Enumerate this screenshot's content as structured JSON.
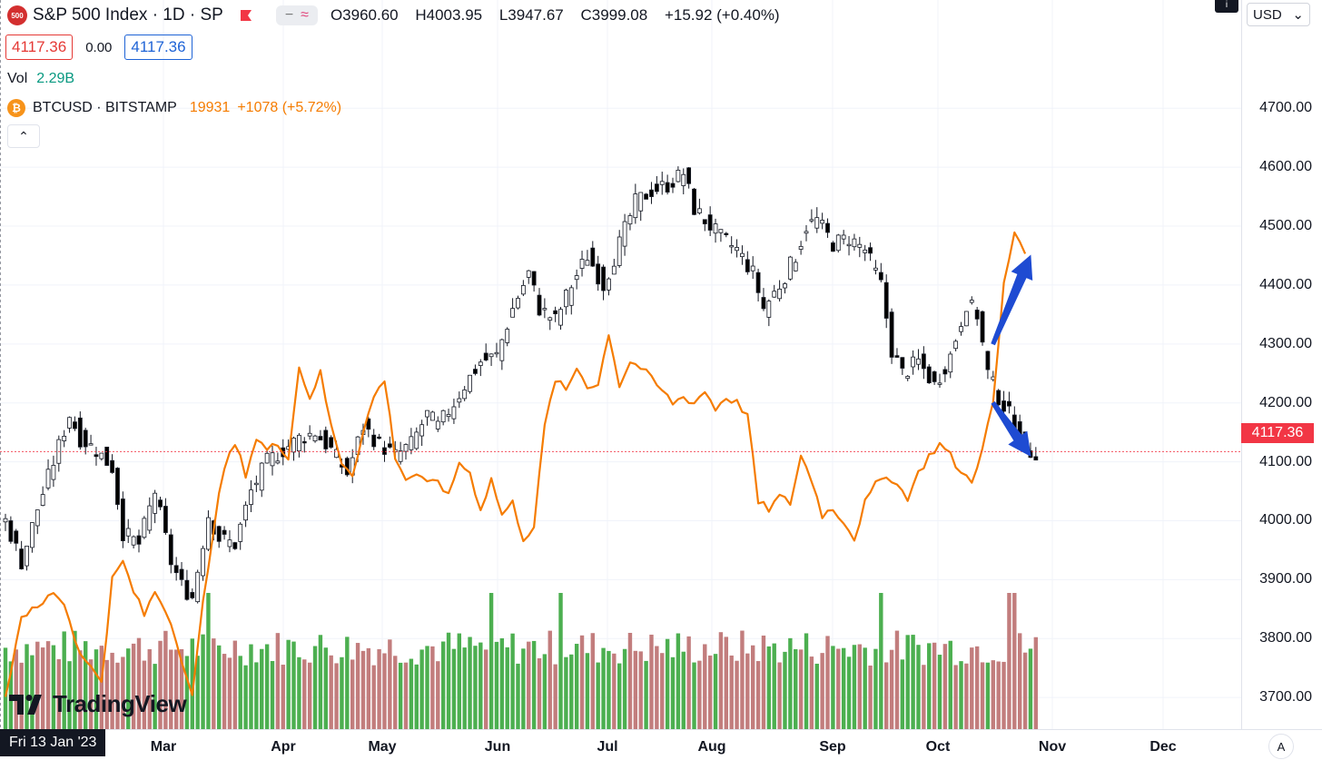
{
  "header": {
    "symbol_title": "S&P 500 Index · 1D · SP",
    "logo_text": "500",
    "compare_minus": "−",
    "compare_wave": "≈",
    "open": "O3960.60",
    "high": "H4003.95",
    "low": "L3947.67",
    "close": "C3999.08",
    "change": "+15.92 (+0.40%)"
  },
  "prices": {
    "bid": "4117.36",
    "spread": "0.00",
    "ask": "4117.36"
  },
  "volume": {
    "label": "Vol",
    "value": "2.29B"
  },
  "btc": {
    "title": "BTCUSD · BITSTAMP",
    "value": "19931",
    "change": "+1078 (+5.72%)"
  },
  "collapse_label": "⌃",
  "currency": {
    "label": "USD",
    "chevron": "⌄"
  },
  "info_icon": "i",
  "last_price_label": "4117.36",
  "date_label": "Fri 13 Jan '23",
  "auto_button": "A",
  "brand": "TradingView",
  "colors": {
    "up": "#131722",
    "down": "#000000",
    "btc_line": "#f57c00",
    "vol_up": "#4caf50",
    "vol_down": "#c27d7d",
    "arrow": "#1e4bd2",
    "last_price": "#f23645"
  },
  "chart_data": {
    "type": "candlestick",
    "ylim": [
      3620,
      4870
    ],
    "y_ticks": [
      3700,
      3800,
      3900,
      4000,
      4100,
      4200,
      4300,
      4400,
      4500,
      4600,
      4700
    ],
    "y_tick_labels": [
      "3700.00",
      "3800.00",
      "3900.00",
      "4000.00",
      "4100.00",
      "4200.00",
      "4300.00",
      "4400.00",
      "4500.00",
      "4600.00",
      "4700.00"
    ],
    "x_months": [
      "Mar",
      "Apr",
      "May",
      "Jun",
      "Jul",
      "Aug",
      "Sep",
      "Oct",
      "Nov",
      "Dec"
    ],
    "last_price": 4117.36,
    "spx_close_anchors": [
      [
        0,
        4000
      ],
      [
        3,
        3930
      ],
      [
        6,
        4020
      ],
      [
        9,
        4100
      ],
      [
        12,
        4180
      ],
      [
        14,
        4140
      ],
      [
        17,
        4120
      ],
      [
        20,
        4090
      ],
      [
        22,
        3980
      ],
      [
        25,
        3960
      ],
      [
        28,
        4050
      ],
      [
        31,
        3930
      ],
      [
        33,
        3890
      ],
      [
        35,
        3870
      ],
      [
        38,
        4010
      ],
      [
        40,
        3970
      ],
      [
        43,
        3960
      ],
      [
        46,
        4050
      ],
      [
        49,
        4100
      ],
      [
        52,
        4120
      ],
      [
        55,
        4140
      ],
      [
        58,
        4150
      ],
      [
        61,
        4120
      ],
      [
        64,
        4080
      ],
      [
        67,
        4160
      ],
      [
        70,
        4130
      ],
      [
        73,
        4110
      ],
      [
        76,
        4130
      ],
      [
        79,
        4180
      ],
      [
        81,
        4160
      ],
      [
        84,
        4200
      ],
      [
        86,
        4230
      ],
      [
        89,
        4270
      ],
      [
        92,
        4280
      ],
      [
        95,
        4360
      ],
      [
        98,
        4420
      ],
      [
        100,
        4360
      ],
      [
        103,
        4340
      ],
      [
        106,
        4400
      ],
      [
        109,
        4450
      ],
      [
        112,
        4400
      ],
      [
        115,
        4470
      ],
      [
        118,
        4540
      ],
      [
        121,
        4560
      ],
      [
        124,
        4570
      ],
      [
        127,
        4590
      ],
      [
        129,
        4530
      ],
      [
        131,
        4510
      ],
      [
        134,
        4480
      ],
      [
        137,
        4460
      ],
      [
        140,
        4420
      ],
      [
        142,
        4360
      ],
      [
        145,
        4400
      ],
      [
        148,
        4450
      ],
      [
        150,
        4500
      ],
      [
        152,
        4510
      ],
      [
        155,
        4470
      ],
      [
        158,
        4480
      ],
      [
        161,
        4460
      ],
      [
        164,
        4400
      ],
      [
        166,
        4290
      ],
      [
        168,
        4250
      ],
      [
        171,
        4270
      ],
      [
        174,
        4230
      ],
      [
        177,
        4280
      ],
      [
        180,
        4370
      ],
      [
        182,
        4350
      ],
      [
        184,
        4250
      ],
      [
        186,
        4210
      ],
      [
        188,
        4180
      ],
      [
        190,
        4140
      ],
      [
        192,
        4117
      ]
    ],
    "btc_anchors": [
      [
        0,
        3700
      ],
      [
        3,
        3840
      ],
      [
        6,
        3850
      ],
      [
        9,
        3880
      ],
      [
        11,
        3860
      ],
      [
        13,
        3800
      ],
      [
        15,
        3760
      ],
      [
        18,
        3730
      ],
      [
        20,
        3900
      ],
      [
        22,
        3930
      ],
      [
        24,
        3880
      ],
      [
        26,
        3840
      ],
      [
        28,
        3880
      ],
      [
        30,
        3850
      ],
      [
        32,
        3800
      ],
      [
        35,
        3700
      ],
      [
        37,
        3860
      ],
      [
        39,
        3990
      ],
      [
        41,
        4090
      ],
      [
        43,
        4130
      ],
      [
        45,
        4080
      ],
      [
        47,
        4140
      ],
      [
        49,
        4120
      ],
      [
        51,
        4130
      ],
      [
        53,
        4110
      ],
      [
        55,
        4260
      ],
      [
        57,
        4210
      ],
      [
        59,
        4250
      ],
      [
        61,
        4160
      ],
      [
        63,
        4100
      ],
      [
        65,
        4080
      ],
      [
        67,
        4150
      ],
      [
        69,
        4210
      ],
      [
        71,
        4240
      ],
      [
        73,
        4110
      ],
      [
        75,
        4070
      ],
      [
        77,
        4080
      ],
      [
        79,
        4060
      ],
      [
        81,
        4070
      ],
      [
        83,
        4040
      ],
      [
        85,
        4100
      ],
      [
        87,
        4080
      ],
      [
        89,
        4020
      ],
      [
        91,
        4070
      ],
      [
        93,
        4010
      ],
      [
        95,
        4030
      ],
      [
        97,
        3970
      ],
      [
        99,
        3990
      ],
      [
        101,
        4160
      ],
      [
        103,
        4240
      ],
      [
        105,
        4220
      ],
      [
        107,
        4260
      ],
      [
        109,
        4230
      ],
      [
        111,
        4230
      ],
      [
        113,
        4320
      ],
      [
        115,
        4230
      ],
      [
        117,
        4270
      ],
      [
        119,
        4260
      ],
      [
        121,
        4240
      ],
      [
        123,
        4220
      ],
      [
        125,
        4200
      ],
      [
        127,
        4210
      ],
      [
        129,
        4200
      ],
      [
        131,
        4220
      ],
      [
        133,
        4190
      ],
      [
        135,
        4210
      ],
      [
        137,
        4200
      ],
      [
        139,
        4180
      ],
      [
        141,
        4030
      ],
      [
        143,
        4020
      ],
      [
        145,
        4040
      ],
      [
        147,
        4030
      ],
      [
        149,
        4110
      ],
      [
        151,
        4070
      ],
      [
        153,
        4010
      ],
      [
        155,
        4020
      ],
      [
        157,
        4000
      ],
      [
        159,
        3970
      ],
      [
        161,
        4030
      ],
      [
        163,
        4060
      ],
      [
        165,
        4080
      ],
      [
        167,
        4060
      ],
      [
        169,
        4040
      ],
      [
        171,
        4080
      ],
      [
        173,
        4110
      ],
      [
        175,
        4130
      ],
      [
        177,
        4110
      ],
      [
        179,
        4080
      ],
      [
        181,
        4070
      ],
      [
        183,
        4120
      ],
      [
        185,
        4200
      ],
      [
        187,
        4400
      ],
      [
        189,
        4490
      ],
      [
        191,
        4460
      ]
    ],
    "arrows": [
      {
        "from": [
          185,
          4300
        ],
        "to": [
          192,
          4450
        ]
      },
      {
        "from": [
          185,
          4200
        ],
        "to": [
          192,
          4110
        ]
      }
    ]
  }
}
